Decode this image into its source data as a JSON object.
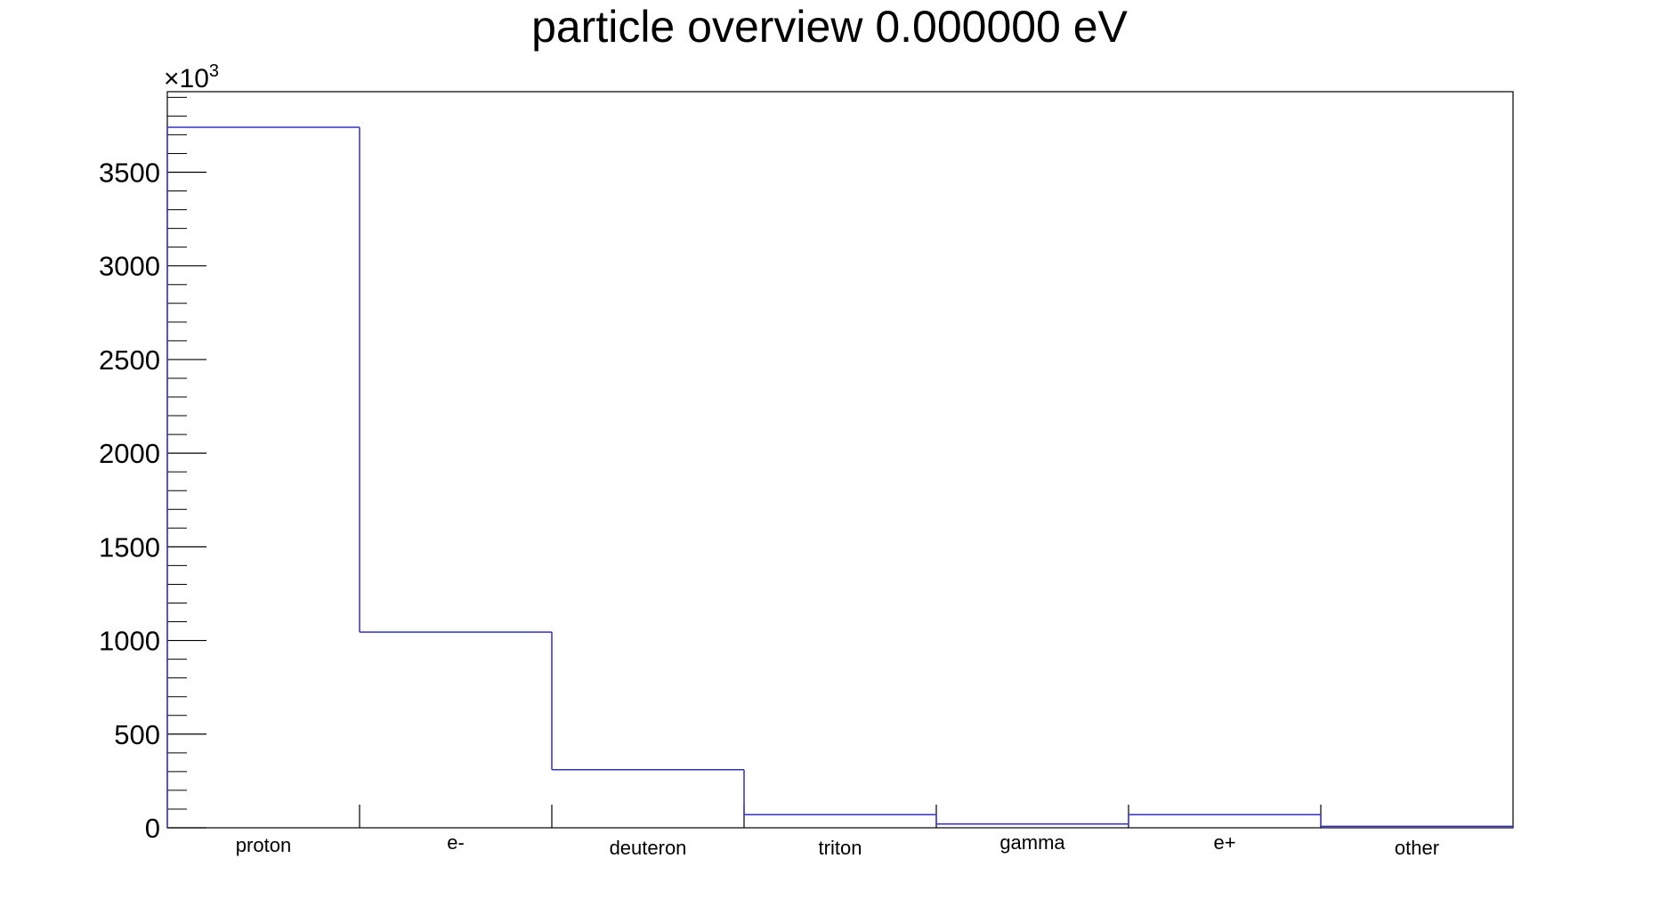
{
  "chart_data": {
    "type": "bar",
    "style": "histogram-step",
    "title": "particle overview 0.000000 eV",
    "xlabel": "",
    "ylabel": "",
    "categories": [
      "proton",
      "e-",
      "deuteron",
      "triton",
      "gamma",
      "e+",
      "other"
    ],
    "values": [
      3740,
      1045,
      310,
      70,
      20,
      70,
      8
    ],
    "y_multiplier": {
      "base": "×10",
      "exponent": "3"
    },
    "ylim": [
      0,
      3930
    ],
    "yticks": [
      0,
      500,
      1000,
      1500,
      2000,
      2500,
      3000,
      3500
    ],
    "yminor_step": 100,
    "grid": false,
    "line_color": "#3030c8",
    "axis_color": "#000000"
  }
}
